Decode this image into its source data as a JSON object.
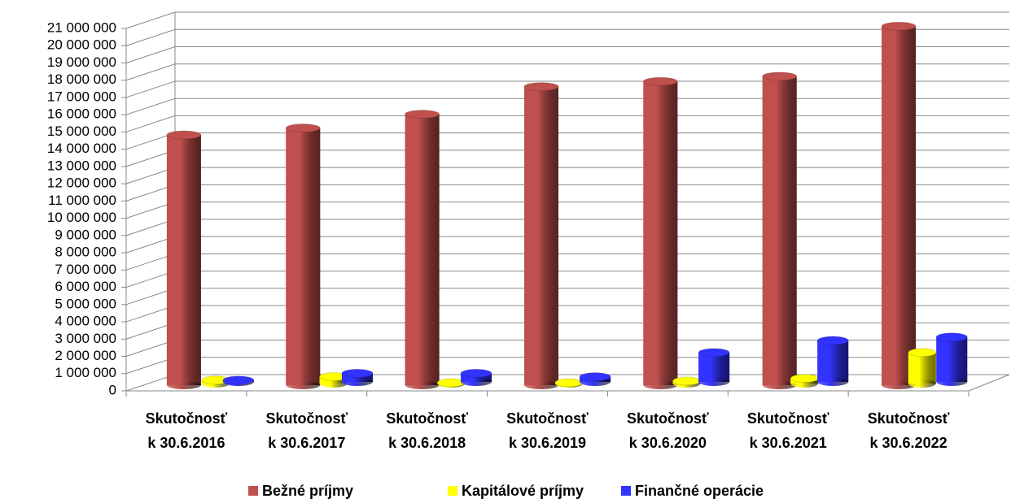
{
  "chart_data": {
    "type": "bar3d",
    "categories": [
      "Skutočnosť\nk 30.6.2016",
      "Skutočnosť\nk 30.6.2017",
      "Skutočnosť\nk 30.6.2018",
      "Skutočnosť\nk 30.6.2019",
      "Skutočnosť\nk 30.6.2020",
      "Skutočnosť\nk 30.6.2021",
      "Skutočnosť\nk 30.6.2022"
    ],
    "series": [
      {
        "name": "Bežné príjmy",
        "color": "#c0504d",
        "values": [
          14500000,
          14900000,
          15700000,
          17300000,
          17600000,
          17900000,
          20800000
        ]
      },
      {
        "name": "Kapitálové príjmy",
        "color": "#ffff00",
        "values": [
          200000,
          400000,
          50000,
          50000,
          150000,
          300000,
          1800000
        ]
      },
      {
        "name": "Finančné operácie",
        "color": "#3333ff",
        "values": [
          100000,
          500000,
          500000,
          300000,
          1700000,
          2400000,
          2600000
        ]
      }
    ],
    "ylim": [
      0,
      21000000
    ],
    "yticks": [
      0,
      {
        "value": 1000000,
        "label": "1 000 000"
      },
      {
        "value": 2000000,
        "label": "2 000 000"
      },
      {
        "value": 3000000,
        "label": "3 000 000"
      },
      {
        "value": 4000000,
        "label": "4 000 000"
      },
      {
        "value": 5000000,
        "label": "5 000 000"
      },
      {
        "value": 6000000,
        "label": "6 000 000"
      },
      {
        "value": 7000000,
        "label": "7 000 000"
      },
      {
        "value": 8000000,
        "label": "8 000 000"
      },
      {
        "value": 9000000,
        "label": "9 000 000"
      },
      {
        "value": 10000000,
        "label": "10 000 000"
      },
      {
        "value": 11000000,
        "label": "11 000 000"
      },
      {
        "value": 12000000,
        "label": "12 000 000"
      },
      {
        "value": 13000000,
        "label": "13 000 000"
      },
      {
        "value": 14000000,
        "label": "14 000 000"
      },
      {
        "value": 15000000,
        "label": "15 000 000"
      },
      {
        "value": 16000000,
        "label": "16 000 000"
      },
      {
        "value": 17000000,
        "label": "17 000 000"
      },
      {
        "value": 18000000,
        "label": "18 000 000"
      },
      {
        "value": 19000000,
        "label": "19 000 000"
      },
      {
        "value": 20000000,
        "label": "20 000 000"
      },
      {
        "value": 21000000,
        "label": "21 000 000"
      }
    ],
    "grid": true,
    "legend": "bottom"
  }
}
